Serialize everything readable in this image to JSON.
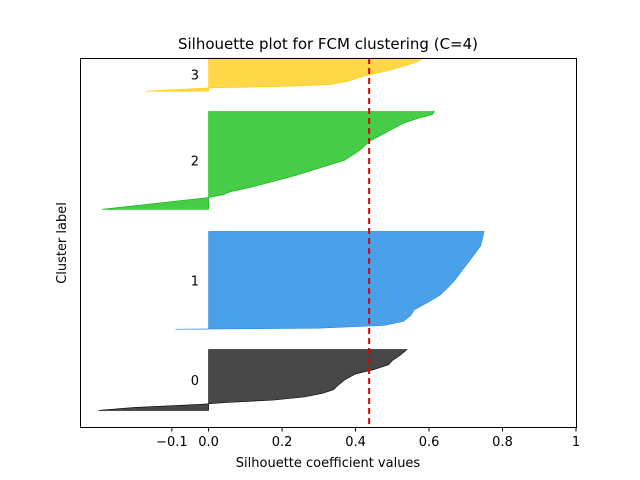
{
  "chart_data": {
    "type": "area",
    "title": "Silhouette plot for FCM clustering (C=4)",
    "xlabel": "Silhouette coefficient values",
    "ylabel": "Cluster label",
    "xlim": [
      -0.35,
      1.0
    ],
    "xticks": [
      -0.1,
      0.0,
      0.2,
      0.4,
      0.6,
      0.8,
      1.0
    ],
    "xtick_labels": [
      "−0.1",
      "0.0",
      "0.2",
      "0.4",
      "0.6",
      "0.8",
      "1"
    ],
    "ylim": [
      0,
      100
    ],
    "average_silhouette": 0.437,
    "average_line_color": "#dd0000",
    "grid": false,
    "clusters": [
      {
        "label": "0",
        "color": "#000000",
        "fill_opacity": 0.72,
        "y_range": [
          4.5,
          21.0
        ],
        "profile": [
          [
            0.0,
            0.54
          ],
          [
            0.05,
            0.53
          ],
          [
            0.1,
            0.52
          ],
          [
            0.18,
            0.5
          ],
          [
            0.25,
            0.49
          ],
          [
            0.33,
            0.45
          ],
          [
            0.4,
            0.4
          ],
          [
            0.5,
            0.37
          ],
          [
            0.6,
            0.35
          ],
          [
            0.66,
            0.34
          ],
          [
            0.72,
            0.31
          ],
          [
            0.78,
            0.26
          ],
          [
            0.83,
            0.18
          ],
          [
            0.87,
            0.05
          ],
          [
            0.9,
            -0.02
          ],
          [
            0.95,
            -0.2
          ],
          [
            1.0,
            -0.3
          ]
        ]
      },
      {
        "label": "1",
        "color": "#1e88e5",
        "fill_opacity": 0.8,
        "y_range": [
          26.5,
          53.0
        ],
        "profile": [
          [
            0.0,
            0.75
          ],
          [
            0.08,
            0.745
          ],
          [
            0.15,
            0.74
          ],
          [
            0.2,
            0.73
          ],
          [
            0.3,
            0.71
          ],
          [
            0.4,
            0.69
          ],
          [
            0.5,
            0.67
          ],
          [
            0.58,
            0.65
          ],
          [
            0.65,
            0.63
          ],
          [
            0.72,
            0.6
          ],
          [
            0.8,
            0.56
          ],
          [
            0.86,
            0.55
          ],
          [
            0.92,
            0.53
          ],
          [
            0.96,
            0.48
          ],
          [
            0.99,
            0.3
          ],
          [
            1.0,
            -0.09
          ]
        ]
      },
      {
        "label": "2",
        "color": "#00b800",
        "fill_opacity": 0.72,
        "y_range": [
          59.0,
          85.5
        ],
        "profile": [
          [
            0.0,
            0.615
          ],
          [
            0.03,
            0.61
          ],
          [
            0.07,
            0.57
          ],
          [
            0.12,
            0.53
          ],
          [
            0.2,
            0.49
          ],
          [
            0.3,
            0.44
          ],
          [
            0.4,
            0.41
          ],
          [
            0.5,
            0.37
          ],
          [
            0.58,
            0.3
          ],
          [
            0.65,
            0.24
          ],
          [
            0.72,
            0.17
          ],
          [
            0.77,
            0.12
          ],
          [
            0.82,
            0.06
          ],
          [
            0.85,
            0.04
          ],
          [
            0.88,
            0.0
          ],
          [
            0.92,
            -0.1
          ],
          [
            1.0,
            -0.29
          ]
        ]
      },
      {
        "label": "3",
        "color": "#ffc800",
        "fill_opacity": 0.72,
        "y_range": [
          91.0,
          100.0
        ],
        "profile": [
          [
            0.0,
            0.585
          ],
          [
            0.1,
            0.57
          ],
          [
            0.25,
            0.53
          ],
          [
            0.4,
            0.48
          ],
          [
            0.55,
            0.42
          ],
          [
            0.7,
            0.38
          ],
          [
            0.8,
            0.33
          ],
          [
            0.85,
            0.22
          ],
          [
            0.9,
            0.0
          ],
          [
            1.0,
            -0.17
          ]
        ]
      }
    ]
  }
}
